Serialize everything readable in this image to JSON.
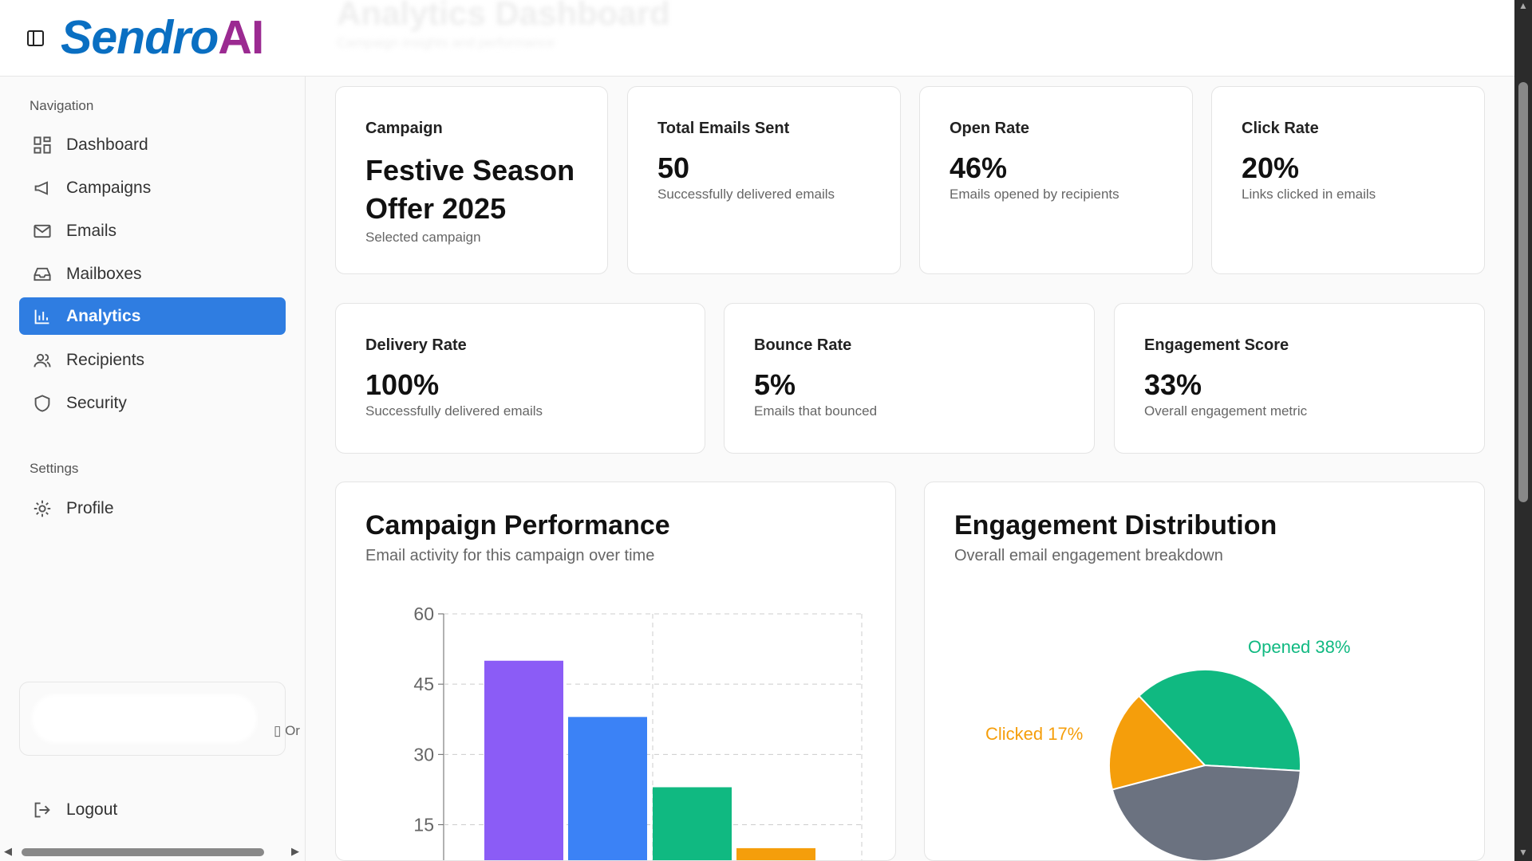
{
  "header": {
    "logo_part1": "Sendro",
    "logo_part2": "AI",
    "title": "Analytics Dashboard",
    "subtitle": "Campaign insights and performance"
  },
  "sidebar": {
    "nav_heading": "Navigation",
    "items": [
      {
        "label": "Dashboard",
        "icon": "grid-icon"
      },
      {
        "label": "Campaigns",
        "icon": "megaphone-icon"
      },
      {
        "label": "Emails",
        "icon": "mail-icon"
      },
      {
        "label": "Mailboxes",
        "icon": "inbox-icon"
      },
      {
        "label": "Analytics",
        "icon": "bar-chart-icon",
        "active": true
      },
      {
        "label": "Recipients",
        "icon": "users-icon"
      },
      {
        "label": "Security",
        "icon": "shield-icon"
      }
    ],
    "settings_heading": "Settings",
    "settings_items": [
      {
        "label": "Profile",
        "icon": "gear-icon"
      }
    ],
    "org_text": "Or",
    "logout": "Logout"
  },
  "stats": [
    {
      "label": "Campaign",
      "value": "Festive Season Offer 2025",
      "desc": "Selected campaign"
    },
    {
      "label": "Total Emails Sent",
      "value": "50",
      "desc": "Successfully delivered emails"
    },
    {
      "label": "Open Rate",
      "value": "46%",
      "desc": "Emails opened by recipients"
    },
    {
      "label": "Click Rate",
      "value": "20%",
      "desc": "Links clicked in emails"
    },
    {
      "label": "Delivery Rate",
      "value": "100%",
      "desc": "Successfully delivered emails"
    },
    {
      "label": "Bounce Rate",
      "value": "5%",
      "desc": "Emails that bounced"
    },
    {
      "label": "Engagement Score",
      "value": "33%",
      "desc": "Overall engagement metric"
    }
  ],
  "colors": {
    "accent": "#2f7de1",
    "purple": "#8b5cf6",
    "blue": "#3b82f6",
    "green": "#10b981",
    "orange": "#f59e0b",
    "gray": "#6b7280"
  },
  "chart_data": [
    {
      "type": "bar",
      "title": "Campaign Performance",
      "subtitle": "Email activity for this campaign over time",
      "yticks": [
        "60",
        "45",
        "30",
        "15"
      ],
      "ylim": [
        0,
        60
      ],
      "grid": true,
      "series": [
        {
          "values": [
            50
          ],
          "color": "#8b5cf6"
        },
        {
          "values": [
            38
          ],
          "color": "#3b82f6"
        },
        {
          "values": [
            23
          ],
          "color": "#10b981"
        },
        {
          "values": [
            10
          ],
          "color": "#f59e0b"
        }
      ]
    },
    {
      "type": "pie",
      "title": "Engagement Distribution",
      "subtitle": "Overall email engagement breakdown",
      "slices": [
        {
          "label": "Opened 38%",
          "value": 38,
          "color": "#10b981"
        },
        {
          "label": "",
          "value": 45,
          "color": "#6b7280"
        },
        {
          "label": "Clicked 17%",
          "value": 17,
          "color": "#f59e0b"
        }
      ]
    }
  ]
}
